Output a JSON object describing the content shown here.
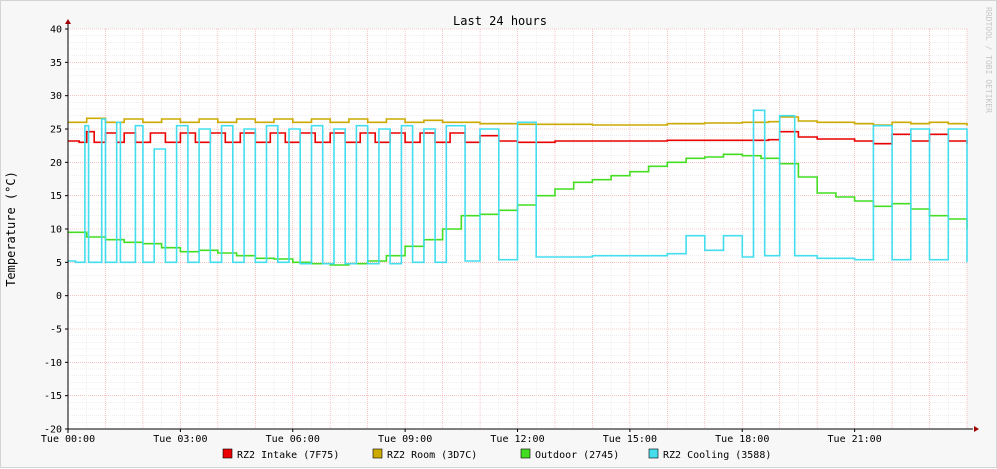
{
  "chart_data": {
    "type": "line",
    "title": "Last 24 hours",
    "ylabel": "Temperature (°C)",
    "watermark": "RRDTOOL / TOBI OETIKER",
    "ylim": [
      -20,
      40
    ],
    "yticks": [
      -20,
      -15,
      -10,
      -5,
      0,
      5,
      10,
      15,
      20,
      25,
      30,
      35,
      40
    ],
    "xlim": [
      0,
      24
    ],
    "xticks": [
      {
        "x": 0,
        "label": "Tue 00:00"
      },
      {
        "x": 3,
        "label": "Tue 03:00"
      },
      {
        "x": 6,
        "label": "Tue 06:00"
      },
      {
        "x": 9,
        "label": "Tue 09:00"
      },
      {
        "x": 12,
        "label": "Tue 12:00"
      },
      {
        "x": 15,
        "label": "Tue 15:00"
      },
      {
        "x": 18,
        "label": "Tue 18:00"
      },
      {
        "x": 21,
        "label": "Tue 21:00"
      }
    ],
    "x_unit": "hours since Tue 00:00",
    "grid": true,
    "legend_position": "bottom",
    "series": [
      {
        "name": "RZ2 Intake (7F75)",
        "color": "#ea0000",
        "x": [
          0,
          0.3,
          0.5,
          0.7,
          1.0,
          1.3,
          1.5,
          1.8,
          2.2,
          2.6,
          3.0,
          3.4,
          3.8,
          4.2,
          4.6,
          5.0,
          5.4,
          5.8,
          6.2,
          6.6,
          7.0,
          7.4,
          7.8,
          8.2,
          8.6,
          9.0,
          9.4,
          9.8,
          10.2,
          10.6,
          11.0,
          11.5,
          12.0,
          13.0,
          14.0,
          15.0,
          16.0,
          17.0,
          18.0,
          18.7,
          19.0,
          19.5,
          20.0,
          21.0,
          21.5,
          22.0,
          22.5,
          23.0,
          23.5,
          24.0
        ],
        "y": [
          23.2,
          23.0,
          24.6,
          23.0,
          24.4,
          23.0,
          24.4,
          23.0,
          24.4,
          23.0,
          24.4,
          23.0,
          24.4,
          23.0,
          24.4,
          23.0,
          24.4,
          23.0,
          24.4,
          23.0,
          24.4,
          23.0,
          24.4,
          23.0,
          24.4,
          23.0,
          24.4,
          23.0,
          24.4,
          23.0,
          24.0,
          23.2,
          23.0,
          23.2,
          23.2,
          23.2,
          23.3,
          23.3,
          23.3,
          23.4,
          24.6,
          23.8,
          23.5,
          23.2,
          22.8,
          24.2,
          23.2,
          24.2,
          23.2,
          22.8
        ]
      },
      {
        "name": "RZ2 Room (3D7C)",
        "color": "#ccaa00",
        "x": [
          0,
          0.5,
          1.0,
          1.5,
          2.0,
          2.5,
          3.0,
          3.5,
          4.0,
          4.5,
          5.0,
          5.5,
          6.0,
          6.5,
          7.0,
          7.5,
          8.0,
          8.5,
          9.0,
          9.5,
          10.0,
          11.0,
          12.0,
          13.0,
          14.0,
          15.0,
          16.0,
          17.0,
          18.0,
          18.7,
          19.0,
          19.5,
          20.0,
          21.0,
          21.5,
          22.0,
          22.5,
          23.0,
          23.5,
          24.0
        ],
        "y": [
          26.0,
          26.6,
          26.0,
          26.5,
          26.0,
          26.5,
          26.0,
          26.5,
          26.0,
          26.5,
          26.0,
          26.5,
          26.0,
          26.5,
          26.0,
          26.5,
          26.0,
          26.5,
          26.0,
          26.3,
          26.0,
          25.8,
          25.7,
          25.7,
          25.6,
          25.6,
          25.8,
          25.9,
          26.0,
          26.1,
          26.8,
          26.2,
          26.0,
          25.8,
          25.6,
          26.0,
          25.8,
          26.0,
          25.8,
          25.5
        ]
      },
      {
        "name": "Outdoor (2745)",
        "color": "#44dd22",
        "x": [
          0,
          0.5,
          1.0,
          1.5,
          2.0,
          2.5,
          3.0,
          3.5,
          4.0,
          4.5,
          5.0,
          5.5,
          6.0,
          6.5,
          7.0,
          7.5,
          8.0,
          8.5,
          9.0,
          9.5,
          10.0,
          10.5,
          11.0,
          11.5,
          12.0,
          12.5,
          13.0,
          13.5,
          14.0,
          14.5,
          15.0,
          15.5,
          16.0,
          16.5,
          17.0,
          17.5,
          18.0,
          18.5,
          19.0,
          19.5,
          20.0,
          20.5,
          21.0,
          21.5,
          22.0,
          22.5,
          23.0,
          23.5,
          24.0
        ],
        "y": [
          9.5,
          8.8,
          8.4,
          8.0,
          7.8,
          7.2,
          6.6,
          6.8,
          6.4,
          6.0,
          5.6,
          5.5,
          5.0,
          4.8,
          4.6,
          4.8,
          5.2,
          6.0,
          7.4,
          8.4,
          10.0,
          12.0,
          12.2,
          12.8,
          13.6,
          15.0,
          16.0,
          17.0,
          17.4,
          18.0,
          18.6,
          19.4,
          20.0,
          20.6,
          20.8,
          21.2,
          21.0,
          20.6,
          19.8,
          17.8,
          15.4,
          14.8,
          14.2,
          13.4,
          13.8,
          13.0,
          12.0,
          11.5,
          10.0
        ]
      },
      {
        "name": "RZ2 Cooling (3588)",
        "color": "#44ddee",
        "x": [
          0,
          0.2,
          0.45,
          0.55,
          0.9,
          1.0,
          1.3,
          1.4,
          1.8,
          2.0,
          2.3,
          2.6,
          2.9,
          3.2,
          3.5,
          3.8,
          4.1,
          4.4,
          4.7,
          5.0,
          5.3,
          5.6,
          5.9,
          6.2,
          6.5,
          6.8,
          7.1,
          7.4,
          7.7,
          8.0,
          8.3,
          8.6,
          8.9,
          9.2,
          9.5,
          9.8,
          10.1,
          10.6,
          11.0,
          11.5,
          12.0,
          12.5,
          13.0,
          14.0,
          15.0,
          16.0,
          16.5,
          17.0,
          17.5,
          18.0,
          18.3,
          18.6,
          19.0,
          19.4,
          20.0,
          21.0,
          21.5,
          22.0,
          22.5,
          23.0,
          23.5,
          24.0
        ],
        "y": [
          5.2,
          5.0,
          25.5,
          5.0,
          26.5,
          5.0,
          26.0,
          5.0,
          25.5,
          5.0,
          22.0,
          5.0,
          25.5,
          5.0,
          25.0,
          5.0,
          25.5,
          5.0,
          25.0,
          5.0,
          25.5,
          5.0,
          25.0,
          4.8,
          25.5,
          4.8,
          25.0,
          4.8,
          25.5,
          4.8,
          25.0,
          4.8,
          25.5,
          5.0,
          25.0,
          5.0,
          25.5,
          5.2,
          25.0,
          5.4,
          26.0,
          5.8,
          5.8,
          6.0,
          6.0,
          6.3,
          9.0,
          6.8,
          9.0,
          5.8,
          27.8,
          6.0,
          27.0,
          6.0,
          5.6,
          5.4,
          25.5,
          5.4,
          25.0,
          5.4,
          25.0,
          5.0
        ]
      }
    ]
  }
}
